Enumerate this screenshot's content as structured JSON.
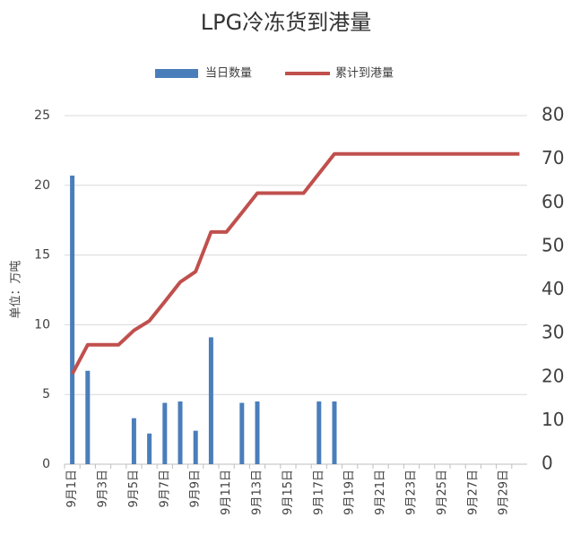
{
  "chart_data": {
    "type": "bar_line",
    "title": "LPG冷冻货到港量",
    "y_label": "单位：万吨",
    "categories": [
      "9月1日",
      null,
      "9月3日",
      null,
      "9月5日",
      null,
      "9月7日",
      null,
      "9月9日",
      null,
      "9月11日",
      null,
      "9月13日",
      null,
      "9月15日",
      null,
      "9月17日",
      null,
      "9月19日",
      null,
      "9月21日",
      null,
      "9月23日",
      null,
      "9月25日",
      null,
      "9月27日",
      null,
      "9月29日",
      null
    ],
    "series": [
      {
        "name": "当日数量",
        "type": "bar",
        "color": "#4a7ebb",
        "values": [
          20.7,
          6.7,
          0,
          0,
          3.3,
          2.2,
          4.4,
          4.5,
          2.4,
          9.1,
          0,
          4.4,
          4.5,
          0,
          0,
          0,
          4.5,
          4.5,
          0,
          0,
          0,
          0,
          0,
          0,
          0,
          0,
          0,
          0,
          0,
          0
        ]
      },
      {
        "name": "累计到港量",
        "type": "line",
        "axis": "y2",
        "color": "#c0504d",
        "values": [
          20.7,
          27.4,
          27.4,
          27.4,
          30.7,
          32.9,
          37.3,
          41.8,
          44.2,
          53.3,
          53.3,
          57.7,
          62.2,
          62.2,
          62.2,
          62.2,
          66.7,
          71.2,
          71.2,
          71.2,
          71.2,
          71.2,
          71.2,
          71.2,
          71.2,
          71.2,
          71.2,
          71.2,
          71.2,
          71.2
        ]
      }
    ],
    "ylim": [
      0,
      25
    ],
    "yticks": [
      0,
      5,
      10,
      15,
      20,
      25
    ],
    "y2lim": [
      0,
      80
    ],
    "y2ticks": [
      0,
      10,
      20,
      30,
      40,
      50,
      60,
      70,
      80
    ],
    "grid": true,
    "legend": "top"
  }
}
